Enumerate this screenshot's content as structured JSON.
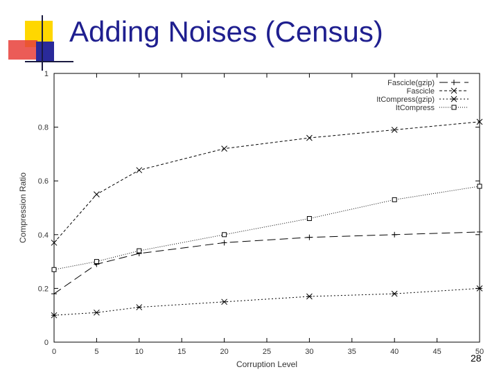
{
  "slide": {
    "title": "Adding Noises (Census)",
    "page_number": "28"
  },
  "colors": {
    "title": "#1f1f8f",
    "accent_yellow": "#ffd700",
    "accent_red": "#e8403a",
    "accent_blue": "#2a2a9a"
  },
  "chart_data": {
    "type": "line",
    "xlabel": "Corruption Level",
    "ylabel": "Compression Ratio",
    "xlim": [
      0,
      50
    ],
    "ylim": [
      0,
      1
    ],
    "xticks": [
      0,
      5,
      10,
      15,
      20,
      25,
      30,
      35,
      40,
      45,
      50
    ],
    "yticks": [
      0,
      0.2,
      0.4,
      0.6,
      0.8,
      1
    ],
    "legend_position": "top-right",
    "grid": false,
    "series": [
      {
        "name": "Fascicle(gzip)",
        "marker": "plus",
        "dash": "12,6",
        "x": [
          0,
          5,
          10,
          20,
          30,
          40,
          50
        ],
        "y": [
          0.18,
          0.29,
          0.33,
          0.37,
          0.39,
          0.4,
          0.41
        ]
      },
      {
        "name": "Fascicle",
        "marker": "x",
        "dash": "4,3",
        "x": [
          0,
          5,
          10,
          20,
          30,
          40,
          50
        ],
        "y": [
          0.37,
          0.55,
          0.64,
          0.72,
          0.76,
          0.79,
          0.82
        ]
      },
      {
        "name": "ItCompress(gzip)",
        "marker": "star",
        "dash": "2,3",
        "x": [
          0,
          5,
          10,
          20,
          30,
          40,
          50
        ],
        "y": [
          0.1,
          0.11,
          0.13,
          0.15,
          0.17,
          0.18,
          0.2
        ]
      },
      {
        "name": "ItCompress",
        "marker": "square",
        "dash": "1,2",
        "x": [
          0,
          5,
          10,
          20,
          30,
          40,
          50
        ],
        "y": [
          0.27,
          0.3,
          0.34,
          0.4,
          0.46,
          0.53,
          0.58
        ]
      }
    ]
  }
}
